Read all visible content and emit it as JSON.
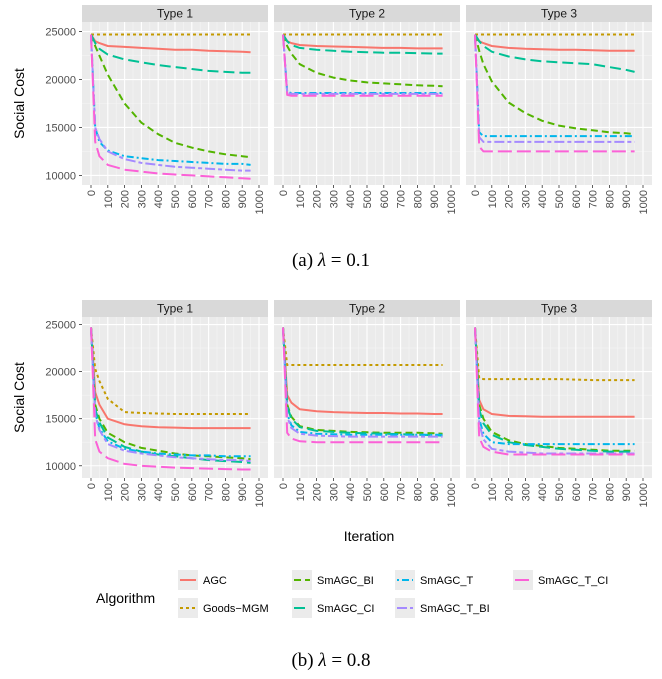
{
  "figure": {
    "captions": [
      {
        "prefix": "(a) ",
        "symbol": "λ",
        "rest": " = 0.1"
      },
      {
        "prefix": "(b) ",
        "symbol": "λ",
        "rest": " = 0.8"
      }
    ],
    "x_axis_title": "Iteration",
    "y_axis_title": "Social Cost",
    "legend": {
      "title": "Algorithm",
      "items": [
        {
          "name": "AGC",
          "color": "#F8766D",
          "dash": "solid"
        },
        {
          "name": "Goods−MGM",
          "color": "#C49A00",
          "dash": "dotted"
        },
        {
          "name": "SmAGC_BI",
          "color": "#53B400",
          "dash": "dashed"
        },
        {
          "name": "SmAGC_CI",
          "color": "#00C094",
          "dash": "longdash"
        },
        {
          "name": "SmAGC_T",
          "color": "#00B6EB",
          "dash": "dotdash"
        },
        {
          "name": "SmAGC_T_BI",
          "color": "#A58AFF",
          "dash": "twodash"
        },
        {
          "name": "SmAGC_T_CI",
          "color": "#FB61D7",
          "dash": "longdash2"
        }
      ]
    }
  },
  "chart_data": [
    {
      "type": "line",
      "panel": "(a) λ = 0.1",
      "facets": [
        "Type 1",
        "Type 2",
        "Type 3"
      ],
      "xlabel": "Iteration",
      "ylabel": "Social Cost",
      "xlim": [
        0,
        1000
      ],
      "ylim": [
        9000,
        26000
      ],
      "x_ticks": [
        0,
        100,
        200,
        300,
        400,
        500,
        600,
        700,
        800,
        900,
        1000
      ],
      "y_ticks": [
        10000,
        15000,
        20000,
        25000
      ],
      "grid": true,
      "x": [
        0,
        25,
        50,
        100,
        200,
        300,
        400,
        500,
        600,
        700,
        800,
        900,
        950
      ],
      "series_by_facet": [
        [
          {
            "name": "AGC",
            "values": [
              24700,
              24000,
              23800,
              23500,
              23400,
              23300,
              23200,
              23100,
              23100,
              23000,
              22950,
              22900,
              22850
            ]
          },
          {
            "name": "Goods−MGM",
            "values": [
              24700,
              24700,
              24700,
              24700,
              24700,
              24700,
              24700,
              24700,
              24700,
              24700,
              24700,
              24700,
              24700
            ]
          },
          {
            "name": "SmAGC_BI",
            "values": [
              24700,
              23500,
              22500,
              20500,
              17500,
              15500,
              14300,
              13400,
              12900,
              12500,
              12200,
              12000,
              11900
            ]
          },
          {
            "name": "SmAGC_CI",
            "values": [
              24700,
              23800,
              23200,
              22600,
              22100,
              21800,
              21500,
              21300,
              21100,
              20900,
              20800,
              20700,
              20700
            ]
          },
          {
            "name": "SmAGC_T",
            "values": [
              24700,
              15000,
              13500,
              12600,
              12000,
              11800,
              11600,
              11500,
              11400,
              11300,
              11200,
              11200,
              11100
            ]
          },
          {
            "name": "SmAGC_T_BI",
            "values": [
              24700,
              15000,
              13800,
              12500,
              11700,
              11300,
              11100,
              10900,
              10800,
              10700,
              10600,
              10500,
              10500
            ]
          },
          {
            "name": "SmAGC_T_CI",
            "values": [
              24700,
              13500,
              12000,
              11100,
              10600,
              10400,
              10200,
              10100,
              10000,
              9900,
              9800,
              9700,
              9650
            ]
          }
        ],
        [
          {
            "name": "AGC",
            "values": [
              24700,
              24000,
              23800,
              23600,
              23500,
              23450,
              23400,
              23350,
              23300,
              23300,
              23250,
              23250,
              23250
            ]
          },
          {
            "name": "Goods−MGM",
            "values": [
              24700,
              24700,
              24700,
              24700,
              24700,
              24700,
              24700,
              24700,
              24700,
              24700,
              24700,
              24700,
              24700
            ]
          },
          {
            "name": "SmAGC_BI",
            "values": [
              24700,
              23500,
              22700,
              21600,
              20700,
              20200,
              19900,
              19700,
              19600,
              19500,
              19400,
              19350,
              19300
            ]
          },
          {
            "name": "SmAGC_CI",
            "values": [
              24700,
              24000,
              23600,
              23300,
              23100,
              23000,
              22900,
              22850,
              22800,
              22800,
              22750,
              22700,
              22700
            ]
          },
          {
            "name": "SmAGC_T",
            "values": [
              24700,
              18700,
              18600,
              18600,
              18600,
              18600,
              18600,
              18600,
              18600,
              18600,
              18600,
              18600,
              18600
            ]
          },
          {
            "name": "SmAGC_T_BI",
            "values": [
              24700,
              18600,
              18500,
              18500,
              18500,
              18500,
              18500,
              18500,
              18500,
              18500,
              18500,
              18500,
              18500
            ]
          },
          {
            "name": "SmAGC_T_CI",
            "values": [
              24700,
              18400,
              18300,
              18300,
              18300,
              18300,
              18300,
              18300,
              18300,
              18300,
              18300,
              18300,
              18300
            ]
          }
        ],
        [
          {
            "name": "AGC",
            "values": [
              24700,
              24000,
              23800,
              23500,
              23300,
              23200,
              23150,
              23100,
              23100,
              23050,
              23000,
              23000,
              23000
            ]
          },
          {
            "name": "Goods−MGM",
            "values": [
              24700,
              24700,
              24700,
              24700,
              24700,
              24700,
              24700,
              24700,
              24700,
              24700,
              24700,
              24700,
              24700
            ]
          },
          {
            "name": "SmAGC_BI",
            "values": [
              24700,
              23000,
              21600,
              19800,
              17600,
              16500,
              15700,
              15200,
              14900,
              14700,
              14500,
              14400,
              14300
            ]
          },
          {
            "name": "SmAGC_CI",
            "values": [
              24700,
              24000,
              23500,
              22900,
              22400,
              22100,
              21900,
              21800,
              21700,
              21600,
              21300,
              21000,
              20800
            ]
          },
          {
            "name": "SmAGC_T",
            "values": [
              24700,
              14500,
              14100,
              14100,
              14100,
              14100,
              14100,
              14100,
              14100,
              14100,
              14100,
              14100,
              14100
            ]
          },
          {
            "name": "SmAGC_T_BI",
            "values": [
              24700,
              14000,
              13500,
              13500,
              13500,
              13500,
              13500,
              13500,
              13500,
              13500,
              13500,
              13500,
              13500
            ]
          },
          {
            "name": "SmAGC_T_CI",
            "values": [
              24700,
              13000,
              12500,
              12500,
              12500,
              12500,
              12500,
              12500,
              12500,
              12500,
              12500,
              12500,
              12500
            ]
          }
        ]
      ]
    },
    {
      "type": "line",
      "panel": "(b) λ = 0.8",
      "facets": [
        "Type 1",
        "Type 2",
        "Type 3"
      ],
      "xlabel": "Iteration",
      "ylabel": "Social Cost",
      "xlim": [
        0,
        1000
      ],
      "ylim": [
        8700,
        25800
      ],
      "x_ticks": [
        0,
        100,
        200,
        300,
        400,
        500,
        600,
        700,
        800,
        900,
        1000
      ],
      "y_ticks": [
        10000,
        15000,
        20000,
        25000
      ],
      "grid": true,
      "x": [
        0,
        25,
        50,
        100,
        200,
        300,
        400,
        500,
        600,
        700,
        800,
        900,
        950
      ],
      "series_by_facet": [
        [
          {
            "name": "AGC",
            "values": [
              24700,
              17800,
              16500,
              15000,
              14400,
              14200,
              14100,
              14050,
              14000,
              14000,
              14000,
              14000,
              14000
            ]
          },
          {
            "name": "Goods−MGM",
            "values": [
              24700,
              20300,
              19000,
              17100,
              15700,
              15600,
              15550,
              15500,
              15500,
              15500,
              15500,
              15500,
              15500
            ]
          },
          {
            "name": "SmAGC_BI",
            "values": [
              24700,
              16500,
              15000,
              13500,
              12500,
              11900,
              11600,
              11300,
              11100,
              11000,
              10900,
              10800,
              10700
            ]
          },
          {
            "name": "SmAGC_CI",
            "values": [
              24700,
              16000,
              14600,
              13000,
              12000,
              11500,
              11200,
              11000,
              10800,
              10600,
              10500,
              10400,
              10300
            ]
          },
          {
            "name": "SmAGC_T",
            "values": [
              24700,
              15600,
              14000,
              12600,
              11800,
              11500,
              11300,
              11200,
              11100,
              11100,
              11000,
              11000,
              11000
            ]
          },
          {
            "name": "SmAGC_T_BI",
            "values": [
              24700,
              15400,
              13800,
              12300,
              11600,
              11300,
              11100,
              10900,
              10800,
              10700,
              10600,
              10600,
              10500
            ]
          },
          {
            "name": "SmAGC_T_CI",
            "values": [
              24700,
              12800,
              11500,
              10800,
              10200,
              10000,
              9900,
              9800,
              9750,
              9700,
              9650,
              9600,
              9600
            ]
          }
        ],
        [
          {
            "name": "AGC",
            "values": [
              24700,
              17500,
              16700,
              16000,
              15800,
              15700,
              15650,
              15600,
              15600,
              15550,
              15550,
              15500,
              15500
            ]
          },
          {
            "name": "Goods−MGM",
            "values": [
              24700,
              20700,
              20700,
              20700,
              20700,
              20700,
              20700,
              20700,
              20700,
              20700,
              20700,
              20700,
              20700
            ]
          },
          {
            "name": "SmAGC_BI",
            "values": [
              24700,
              16500,
              15200,
              14200,
              13800,
              13700,
              13600,
              13550,
              13500,
              13500,
              13500,
              13450,
              13400
            ]
          },
          {
            "name": "SmAGC_CI",
            "values": [
              24700,
              16300,
              15000,
              14100,
              13700,
              13600,
              13500,
              13450,
              13400,
              13350,
              13300,
              13250,
              13200
            ]
          },
          {
            "name": "SmAGC_T",
            "values": [
              24700,
              15500,
              14300,
              13600,
              13400,
              13350,
              13300,
              13300,
              13300,
              13300,
              13300,
              13300,
              13300
            ]
          },
          {
            "name": "SmAGC_T_BI",
            "values": [
              24700,
              15200,
              14000,
              13400,
              13200,
              13150,
              13100,
              13100,
              13100,
              13100,
              13100,
              13100,
              13100
            ]
          },
          {
            "name": "SmAGC_T_CI",
            "values": [
              24700,
              13500,
              12900,
              12600,
              12500,
              12500,
              12500,
              12500,
              12500,
              12500,
              12500,
              12500,
              12500
            ]
          }
        ],
        [
          {
            "name": "AGC",
            "values": [
              24700,
              17000,
              16000,
              15500,
              15300,
              15250,
              15200,
              15200,
              15200,
              15200,
              15200,
              15200,
              15200
            ]
          },
          {
            "name": "Goods−MGM",
            "values": [
              24700,
              19300,
              19200,
              19200,
              19200,
              19200,
              19200,
              19200,
              19150,
              19100,
              19100,
              19100,
              19100
            ]
          },
          {
            "name": "SmAGC_BI",
            "values": [
              24700,
              16500,
              15000,
              13600,
              12700,
              12300,
              12100,
              11900,
              11800,
              11700,
              11600,
              11600,
              11600
            ]
          },
          {
            "name": "SmAGC_CI",
            "values": [
              24700,
              16000,
              14500,
              13300,
              12500,
              12200,
              12000,
              11800,
              11700,
              11600,
              11500,
              11500,
              11500
            ]
          },
          {
            "name": "SmAGC_T",
            "values": [
              24700,
              15000,
              13400,
              12500,
              12300,
              12300,
              12300,
              12300,
              12300,
              12300,
              12300,
              12300,
              12300
            ]
          },
          {
            "name": "SmAGC_T_BI",
            "values": [
              24700,
              14500,
              12800,
              11800,
              11500,
              11400,
              11300,
              11300,
              11300,
              11300,
              11300,
              11300,
              11300
            ]
          },
          {
            "name": "SmAGC_T_CI",
            "values": [
              24700,
              13000,
              12000,
              11500,
              11200,
              11200,
              11200,
              11200,
              11200,
              11200,
              11200,
              11200,
              11200
            ]
          }
        ]
      ]
    }
  ]
}
